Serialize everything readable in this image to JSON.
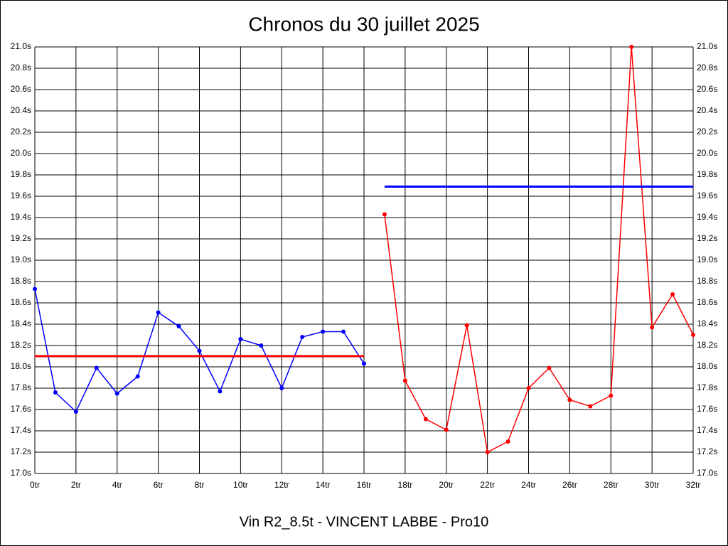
{
  "chart_data": {
    "type": "line",
    "title": "Chronos du 30 juillet 2025",
    "footer": "Vin R2_8.5t - VINCENT LABBE - Pro10",
    "xlim": [
      0,
      32
    ],
    "ylim": [
      17.0,
      21.0
    ],
    "grid": true,
    "xticks": [
      {
        "value": 0,
        "label": "0tr"
      },
      {
        "value": 2,
        "label": "2tr"
      },
      {
        "value": 4,
        "label": "4tr"
      },
      {
        "value": 6,
        "label": "6tr"
      },
      {
        "value": 8,
        "label": "8tr"
      },
      {
        "value": 10,
        "label": "10tr"
      },
      {
        "value": 12,
        "label": "12tr"
      },
      {
        "value": 14,
        "label": "14tr"
      },
      {
        "value": 16,
        "label": "16tr"
      },
      {
        "value": 18,
        "label": "18tr"
      },
      {
        "value": 20,
        "label": "20tr"
      },
      {
        "value": 22,
        "label": "22tr"
      },
      {
        "value": 24,
        "label": "24tr"
      },
      {
        "value": 26,
        "label": "26tr"
      },
      {
        "value": 28,
        "label": "28tr"
      },
      {
        "value": 30,
        "label": "30tr"
      },
      {
        "value": 32,
        "label": "32tr"
      }
    ],
    "yticks": [
      {
        "value": 17.0,
        "label": "17.0s"
      },
      {
        "value": 17.2,
        "label": "17.2s"
      },
      {
        "value": 17.4,
        "label": "17.4s"
      },
      {
        "value": 17.6,
        "label": "17.6s"
      },
      {
        "value": 17.8,
        "label": "17.8s"
      },
      {
        "value": 18.0,
        "label": "18.0s"
      },
      {
        "value": 18.2,
        "label": "18.2s"
      },
      {
        "value": 18.4,
        "label": "18.4s"
      },
      {
        "value": 18.6,
        "label": "18.6s"
      },
      {
        "value": 18.8,
        "label": "18.8s"
      },
      {
        "value": 19.0,
        "label": "19.0s"
      },
      {
        "value": 19.2,
        "label": "19.2s"
      },
      {
        "value": 19.4,
        "label": "19.4s"
      },
      {
        "value": 19.6,
        "label": "19.6s"
      },
      {
        "value": 19.8,
        "label": "19.8s"
      },
      {
        "value": 20.0,
        "label": "20.0s"
      },
      {
        "value": 20.2,
        "label": "20.2s"
      },
      {
        "value": 20.4,
        "label": "20.4s"
      },
      {
        "value": 20.6,
        "label": "20.6s"
      },
      {
        "value": 20.8,
        "label": "20.8s"
      },
      {
        "value": 21.0,
        "label": "21.0s"
      }
    ],
    "series": [
      {
        "color": "#0000ff",
        "markers": true,
        "width": 1.5,
        "x": [
          0,
          1,
          2,
          3,
          4,
          5,
          6,
          7,
          8,
          9,
          10,
          11,
          12,
          13,
          14,
          15,
          16
        ],
        "values": [
          18.73,
          17.76,
          17.58,
          17.99,
          17.75,
          17.91,
          18.51,
          18.38,
          18.15,
          17.77,
          18.26,
          18.2,
          17.8,
          18.28,
          18.33,
          18.33,
          18.03
        ]
      },
      {
        "color": "#ff0000",
        "markers": true,
        "width": 1.5,
        "x": [
          17,
          18,
          19,
          20,
          21,
          22,
          23,
          24,
          25,
          26,
          27,
          28,
          29,
          30,
          31,
          32
        ],
        "values": [
          19.43,
          17.87,
          17.51,
          17.41,
          18.39,
          17.2,
          17.3,
          17.8,
          17.99,
          17.69,
          17.63,
          17.73,
          21.0,
          18.37,
          18.68,
          18.3
        ]
      },
      {
        "color": "#ff0000",
        "markers": false,
        "width": 3,
        "x": [
          0,
          16
        ],
        "values": [
          18.1,
          18.1
        ]
      },
      {
        "color": "#0000ff",
        "markers": false,
        "width": 3,
        "x": [
          17,
          32
        ],
        "values": [
          19.69,
          19.69
        ]
      }
    ]
  }
}
